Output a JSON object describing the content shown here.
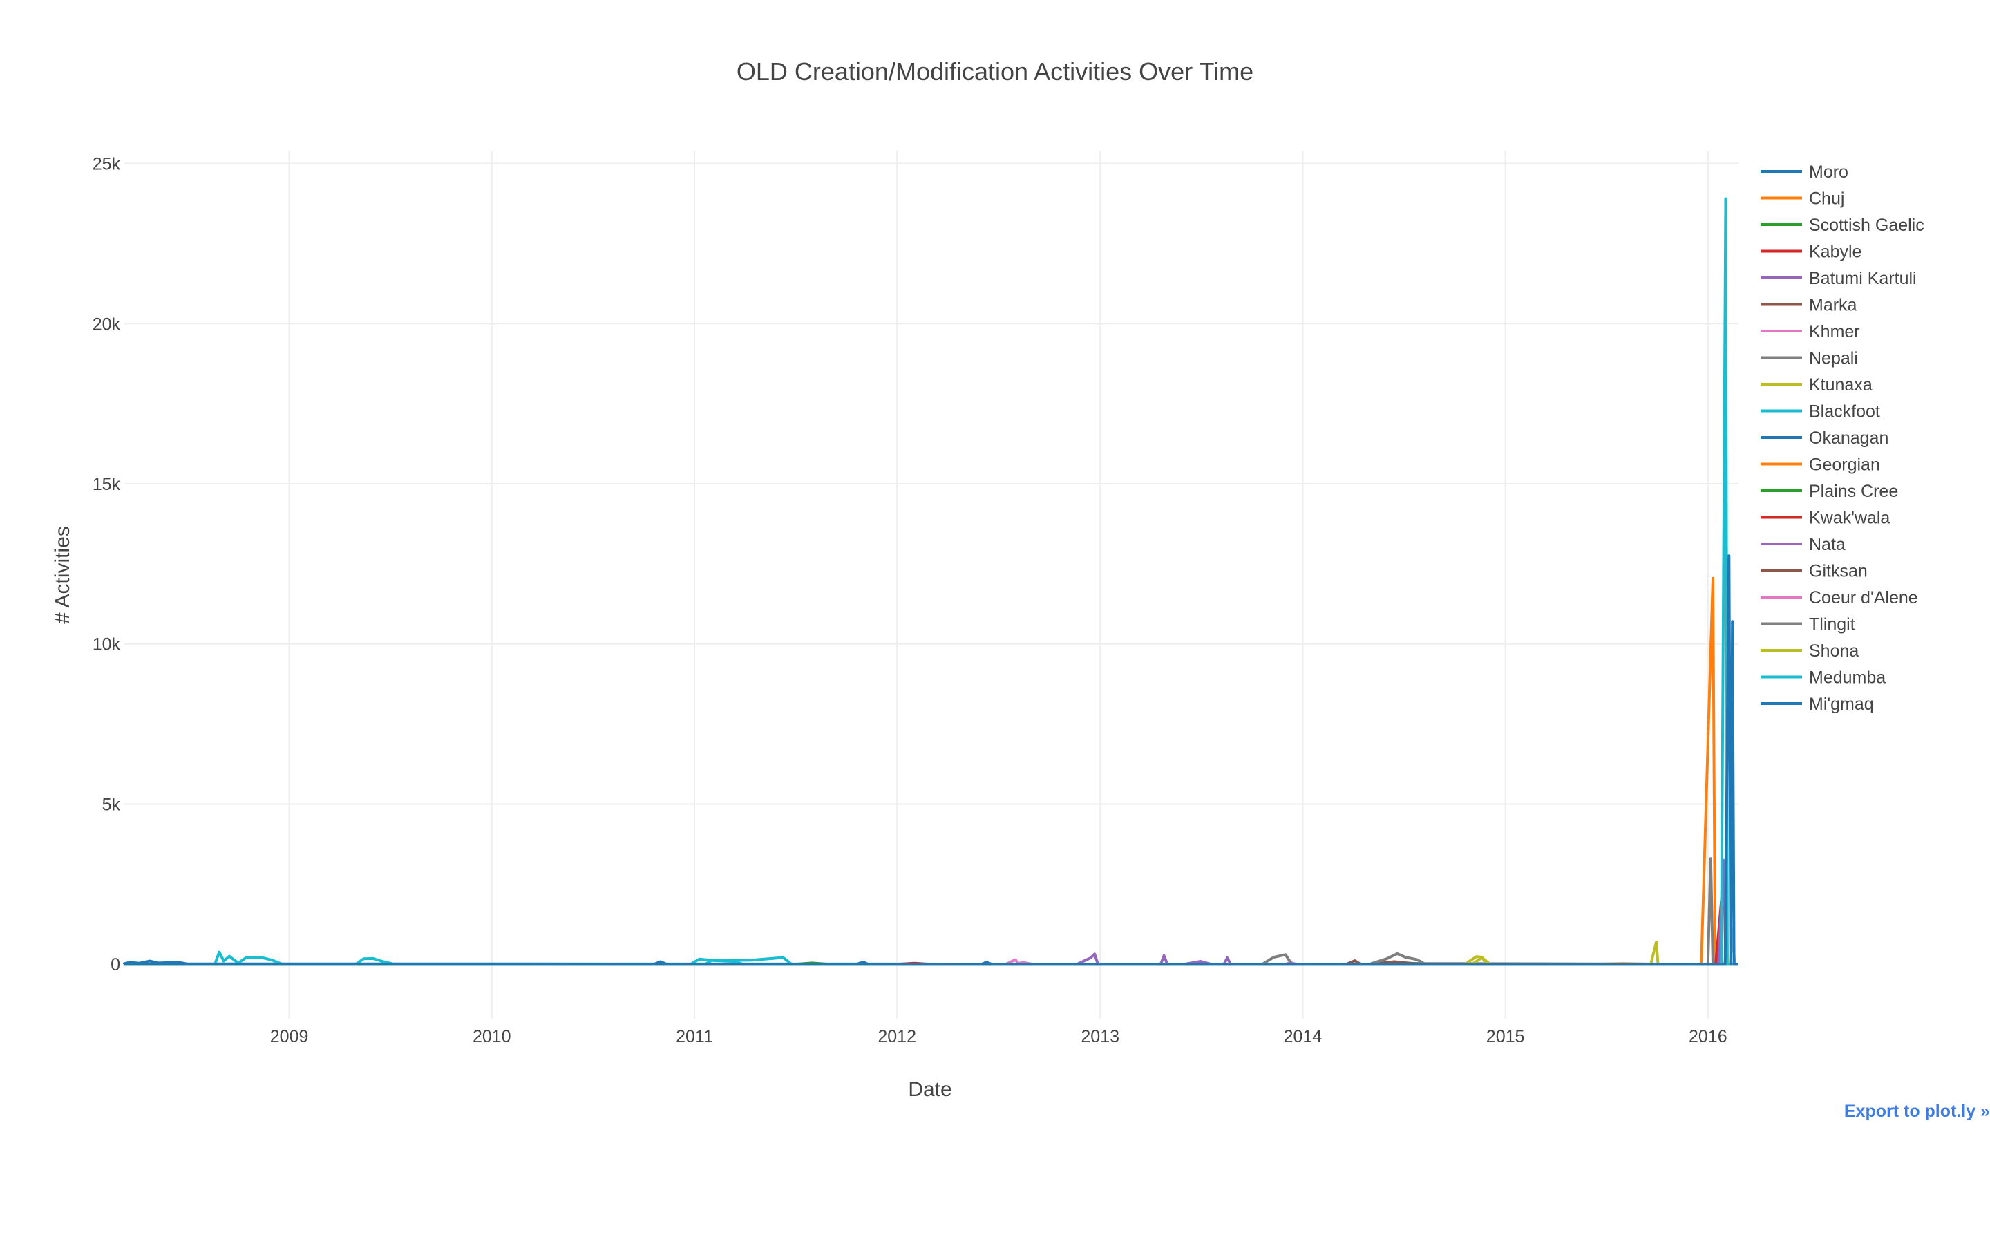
{
  "chart_data": {
    "type": "line",
    "title": "OLD Creation/Modification Activities Over Time",
    "xlabel": "Date",
    "ylabel": "# Activities",
    "xlim": [
      "2008-03-10",
      "2016-02-25"
    ],
    "ylim": [
      -1700,
      25400
    ],
    "x_ticks": [
      "2009",
      "2010",
      "2011",
      "2012",
      "2013",
      "2014",
      "2015",
      "2016"
    ],
    "y_ticks": [
      {
        "value": 0,
        "label": "0"
      },
      {
        "value": 5000,
        "label": "5k"
      },
      {
        "value": 10000,
        "label": "10k"
      },
      {
        "value": 15000,
        "label": "15k"
      },
      {
        "value": 20000,
        "label": "20k"
      },
      {
        "value": 25000,
        "label": "25k"
      }
    ],
    "grid": true,
    "legend_position": "right",
    "series": [
      {
        "name": "Moro",
        "color": "#1f77b4",
        "points": [
          [
            "2008-03-10",
            20
          ],
          [
            "2008-03-20",
            60
          ],
          [
            "2008-04-05",
            30
          ],
          [
            "2008-04-25",
            100
          ],
          [
            "2008-05-10",
            40
          ],
          [
            "2008-06-15",
            60
          ],
          [
            "2008-07-01",
            10
          ]
        ]
      },
      {
        "name": "Chuj",
        "color": "#ff7f0e",
        "points": [
          [
            "2015-12-20",
            0
          ],
          [
            "2016-01-10",
            12050
          ],
          [
            "2016-01-14",
            0
          ],
          [
            "2016-01-22",
            600
          ],
          [
            "2016-01-27",
            0
          ]
        ]
      },
      {
        "name": "Scottish Gaelic",
        "color": "#2ca02c",
        "points": [
          [
            "2014-06-01",
            0
          ],
          [
            "2014-07-10",
            30
          ],
          [
            "2014-08-15",
            10
          ]
        ]
      },
      {
        "name": "Kabyle",
        "color": "#d62728",
        "points": [
          [
            "2016-01-15",
            0
          ],
          [
            "2016-01-30",
            2900
          ],
          [
            "2016-02-02",
            0
          ]
        ]
      },
      {
        "name": "Batumi Kartuli",
        "color": "#9467bd",
        "points": [
          [
            "2012-11-20",
            0
          ],
          [
            "2012-12-15",
            200
          ],
          [
            "2012-12-22",
            320
          ],
          [
            "2012-12-28",
            0
          ],
          [
            "2013-04-20",
            0
          ],
          [
            "2013-04-26",
            270
          ],
          [
            "2013-05-02",
            0
          ],
          [
            "2013-08-12",
            0
          ],
          [
            "2013-08-18",
            200
          ],
          [
            "2013-08-24",
            0
          ],
          [
            "2016-01-20",
            0
          ],
          [
            "2016-01-29",
            3250
          ],
          [
            "2016-02-03",
            0
          ]
        ]
      },
      {
        "name": "Marka",
        "color": "#8c564b",
        "points": [
          [
            "2014-05-01",
            0
          ],
          [
            "2014-06-15",
            80
          ],
          [
            "2014-07-20",
            20
          ]
        ]
      },
      {
        "name": "Khmer",
        "color": "#e377c2",
        "points": [
          [
            "2012-07-15",
            0
          ],
          [
            "2012-08-01",
            140
          ],
          [
            "2012-08-08",
            0
          ],
          [
            "2013-12-01",
            0
          ],
          [
            "2013-12-10",
            60
          ],
          [
            "2013-12-20",
            0
          ]
        ]
      },
      {
        "name": "Nepali",
        "color": "#7f7f7f",
        "points": [
          [
            "2013-10-20",
            0
          ],
          [
            "2013-11-10",
            220
          ],
          [
            "2013-12-01",
            300
          ],
          [
            "2013-12-12",
            0
          ],
          [
            "2014-05-01",
            0
          ],
          [
            "2014-06-01",
            170
          ],
          [
            "2014-06-20",
            330
          ],
          [
            "2014-07-05",
            220
          ],
          [
            "2014-07-25",
            150
          ],
          [
            "2014-08-10",
            0
          ]
        ]
      },
      {
        "name": "Ktunaxa",
        "color": "#bcbd22",
        "points": [
          [
            "2014-10-20",
            0
          ],
          [
            "2014-11-10",
            240
          ],
          [
            "2014-11-20",
            220
          ],
          [
            "2014-11-28",
            0
          ],
          [
            "2015-09-20",
            0
          ],
          [
            "2015-09-30",
            700
          ],
          [
            "2015-10-03",
            0
          ],
          [
            "2016-02-10",
            0
          ],
          [
            "2016-02-14",
            1100
          ],
          [
            "2016-02-18",
            0
          ]
        ]
      },
      {
        "name": "Blackfoot",
        "color": "#17becf",
        "points": [
          [
            "2008-08-20",
            0
          ],
          [
            "2008-08-28",
            380
          ],
          [
            "2008-09-05",
            100
          ],
          [
            "2008-09-15",
            250
          ],
          [
            "2008-10-01",
            40
          ],
          [
            "2008-10-15",
            200
          ],
          [
            "2008-11-10",
            220
          ],
          [
            "2008-12-01",
            130
          ],
          [
            "2008-12-20",
            0
          ],
          [
            "2009-05-01",
            0
          ],
          [
            "2009-05-15",
            170
          ],
          [
            "2009-06-01",
            180
          ],
          [
            "2009-06-20",
            80
          ],
          [
            "2009-07-10",
            0
          ],
          [
            "2010-12-25",
            0
          ],
          [
            "2011-01-10",
            160
          ],
          [
            "2011-02-10",
            110
          ],
          [
            "2011-04-15",
            130
          ],
          [
            "2011-06-10",
            210
          ],
          [
            "2011-06-25",
            0
          ],
          [
            "2016-01-25",
            0
          ],
          [
            "2016-02-02",
            23900
          ],
          [
            "2016-02-05",
            0
          ]
        ]
      },
      {
        "name": "Okanagan",
        "color": "#1f77b4",
        "points": [
          [
            "2010-10-20",
            0
          ],
          [
            "2010-11-01",
            80
          ],
          [
            "2010-11-12",
            0
          ],
          [
            "2011-10-20",
            0
          ],
          [
            "2011-11-01",
            70
          ],
          [
            "2011-11-10",
            0
          ],
          [
            "2012-06-01",
            0
          ],
          [
            "2012-06-10",
            60
          ],
          [
            "2012-06-20",
            0
          ]
        ]
      },
      {
        "name": "Georgian",
        "color": "#ff7f0e",
        "points": [
          [
            "2015-06-01",
            0
          ],
          [
            "2015-08-01",
            20
          ],
          [
            "2015-10-01",
            0
          ]
        ]
      },
      {
        "name": "Plains Cree",
        "color": "#2ca02c",
        "points": [
          [
            "2011-07-01",
            0
          ],
          [
            "2011-08-01",
            40
          ],
          [
            "2011-09-01",
            0
          ]
        ]
      },
      {
        "name": "Kwak'wala",
        "color": "#d62728",
        "points": [
          [
            "2012-01-01",
            0
          ],
          [
            "2012-02-01",
            30
          ],
          [
            "2012-03-01",
            0
          ]
        ]
      },
      {
        "name": "Nata",
        "color": "#9467bd",
        "points": [
          [
            "2013-06-01",
            0
          ],
          [
            "2013-07-01",
            90
          ],
          [
            "2013-07-20",
            0
          ]
        ]
      },
      {
        "name": "Gitksan",
        "color": "#8c564b",
        "points": [
          [
            "2014-03-20",
            0
          ],
          [
            "2014-04-05",
            110
          ],
          [
            "2014-04-15",
            0
          ]
        ]
      },
      {
        "name": "Coeur d'Alene",
        "color": "#e377c2",
        "points": [
          [
            "2012-08-01",
            0
          ],
          [
            "2012-08-15",
            60
          ],
          [
            "2012-09-01",
            0
          ]
        ]
      },
      {
        "name": "Tlingit",
        "color": "#7f7f7f",
        "points": [
          [
            "2016-01-01",
            0
          ],
          [
            "2016-01-06",
            3300
          ],
          [
            "2016-01-10",
            0
          ]
        ]
      },
      {
        "name": "Shona",
        "color": "#bcbd22",
        "points": [
          [
            "2014-11-01",
            0
          ],
          [
            "2014-11-20",
            200
          ],
          [
            "2014-12-05",
            0
          ]
        ]
      },
      {
        "name": "Medumba",
        "color": "#17becf",
        "points": [
          [
            "2011-01-20",
            0
          ],
          [
            "2011-02-01",
            120
          ],
          [
            "2011-03-10",
            90
          ],
          [
            "2011-03-30",
            0
          ]
        ]
      },
      {
        "name": "Mi'gmaq",
        "color": "#1f77b4",
        "points": [
          [
            "2016-02-01",
            0
          ],
          [
            "2016-02-08",
            12750
          ],
          [
            "2016-02-11",
            0
          ],
          [
            "2016-02-14",
            10700
          ],
          [
            "2016-02-17",
            0
          ]
        ]
      }
    ]
  },
  "export_link": "Export to plot.ly »"
}
